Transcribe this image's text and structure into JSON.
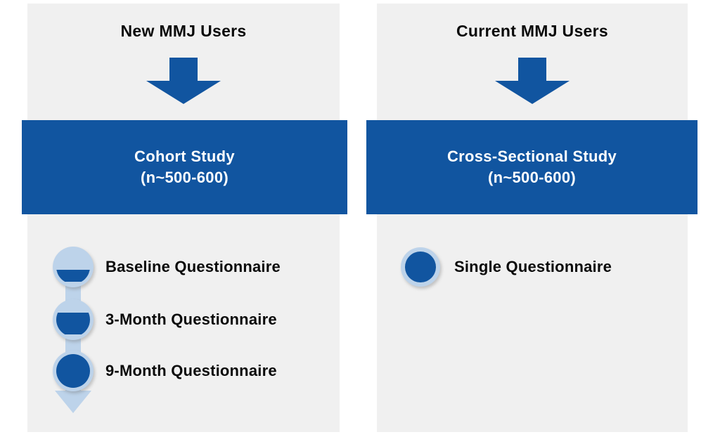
{
  "figure": {
    "background_color": "#ffffff",
    "panel_color": "#f0f0f0",
    "dark_blue": "#1155a0",
    "light_blue": "#bdd3ea",
    "text_color": "#0a0a0a",
    "banner_text_color": "#ffffff"
  },
  "columns": [
    {
      "title": "New MMJ Users",
      "banner_line1": "Cohort Study",
      "banner_line2": "(n~500-600)",
      "items": [
        {
          "label": "Baseline Questionnaire",
          "fill_percent": 36
        },
        {
          "label": "3-Month Questionnaire",
          "fill_percent": 65
        },
        {
          "label": "9-Month Questionnaire",
          "fill_percent": 100
        }
      ]
    },
    {
      "title": "Current MMJ Users",
      "banner_line1": "Cross-Sectional Study",
      "banner_line2": "(n~500-600)",
      "items": [
        {
          "label": "Single Questionnaire",
          "fill_percent": 100
        }
      ]
    }
  ]
}
